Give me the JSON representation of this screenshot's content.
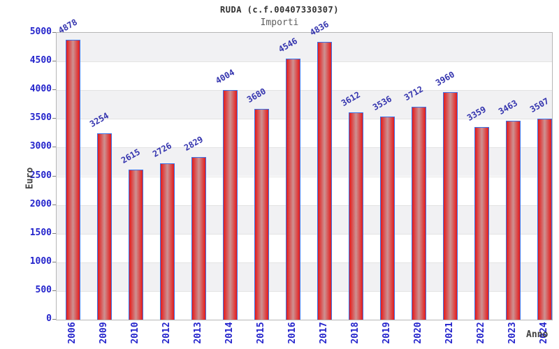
{
  "chart_data": {
    "type": "bar",
    "title": "RUDA (c.f.00407330307)",
    "subtitle": "Importi",
    "xlabel": "Anno",
    "ylabel": "Euro",
    "categories": [
      "2006",
      "2009",
      "2010",
      "2012",
      "2013",
      "2014",
      "2015",
      "2016",
      "2017",
      "2018",
      "2019",
      "2020",
      "2021",
      "2022",
      "2023",
      "2024"
    ],
    "values": [
      4878,
      3254,
      2615,
      2726,
      2829,
      4004,
      3680,
      4546,
      4836,
      3612,
      3536,
      3712,
      3960,
      3359,
      3463,
      3507
    ],
    "yticks": [
      0,
      500,
      1000,
      1500,
      2000,
      2500,
      3000,
      3500,
      4000,
      4500,
      5000
    ],
    "ylim": [
      0,
      5000
    ],
    "legend": null,
    "grid": "alternating-horizontal-bands",
    "value_labels_rotation_deg": -30,
    "xtick_rotation_deg": -90,
    "colors": {
      "bar_edge": "#e41b1b",
      "bar_mid": "#dd4040",
      "bar_center": "#cd9292",
      "bar_border": "#3a72e8",
      "tick_label": "#2424cc",
      "value_label": "#3434ae",
      "band_shade": "#f1f1f3",
      "band_plain": "#ffffff",
      "gridline": "#e3e3e3",
      "axis_title": "#404040",
      "title": "#303030",
      "subtitle": "#5d5d5d"
    }
  }
}
